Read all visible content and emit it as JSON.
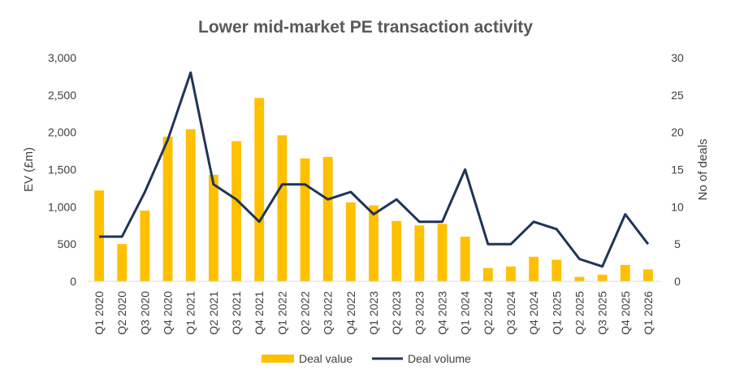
{
  "chart_data": {
    "type": "bar+line",
    "title": "Lower mid-market PE transaction activity",
    "categories": [
      "Q1 2020",
      "Q2 2020",
      "Q3 2020",
      "Q4 2020",
      "Q1 2021",
      "Q2 2021",
      "Q3 2021",
      "Q4 2021",
      "Q1 2022",
      "Q2 2022",
      "Q3 2022",
      "Q4 2022",
      "Q1 2023",
      "Q2 2023",
      "Q3 2023",
      "Q4 2023",
      "Q1 2024",
      "Q2 2024",
      "Q3 2024",
      "Q4 2024",
      "Q1 2025",
      "Q2 2025",
      "Q3 2025",
      "Q4 2025",
      "Q1 2026"
    ],
    "series": [
      {
        "name": "Deal value",
        "kind": "bar",
        "axis": "left",
        "color": "#FFC000",
        "values": [
          1220,
          500,
          950,
          1940,
          2040,
          1430,
          1880,
          2460,
          1960,
          1650,
          1670,
          1060,
          1020,
          810,
          750,
          770,
          600,
          180,
          200,
          330,
          290,
          60,
          90,
          220,
          160
        ]
      },
      {
        "name": "Deal volume",
        "kind": "line",
        "axis": "right",
        "color": "#1F3457",
        "values": [
          6,
          6,
          12,
          19,
          28,
          13,
          11,
          8,
          13,
          13,
          11,
          12,
          9,
          11,
          8,
          8,
          15,
          5,
          5,
          8,
          7,
          3,
          2,
          9,
          5
        ]
      }
    ],
    "ylabel": "EV (£m)",
    "ylim": [
      0,
      3000
    ],
    "yticks": [
      "0",
      "500",
      "1,000",
      "1,500",
      "2,000",
      "2,500",
      "3,000"
    ],
    "y2label": "No of deals",
    "y2lim": [
      0,
      30
    ],
    "y2ticks": [
      "0",
      "5",
      "10",
      "15",
      "20",
      "25",
      "30"
    ],
    "grid": false,
    "legend_position": "bottom"
  }
}
